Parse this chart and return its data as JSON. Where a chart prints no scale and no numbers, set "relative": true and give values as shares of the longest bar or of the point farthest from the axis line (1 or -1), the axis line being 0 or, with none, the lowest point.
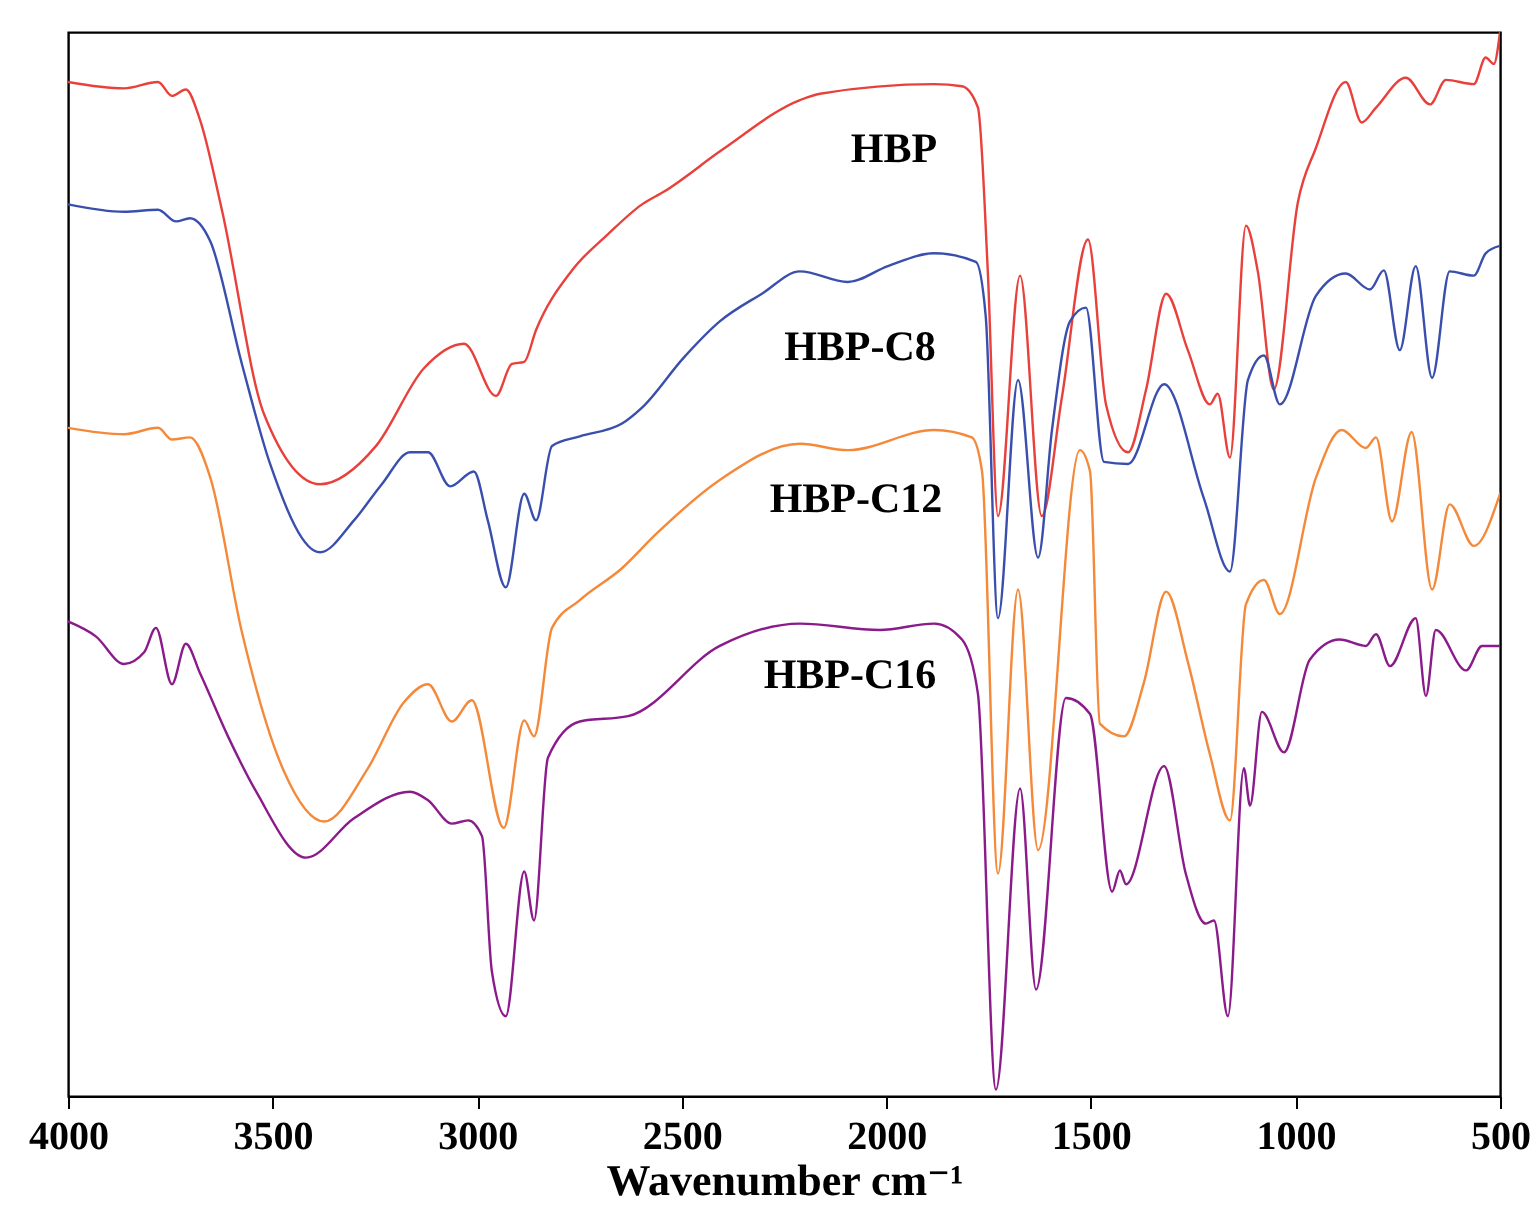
{
  "chart_data": {
    "type": "line",
    "xlabel": "Wavenumber cm⁻¹",
    "relative": true,
    "xlim": [
      4000,
      500
    ],
    "xticks": [
      4000,
      3500,
      3000,
      2500,
      2000,
      1500,
      1000,
      500
    ],
    "marker": "none",
    "line_style": "solid",
    "series": [
      {
        "name": "HBP",
        "color": "#e8413c",
        "x": [
          4000,
          3863,
          3780,
          3746,
          3712,
          3677,
          3624,
          3521,
          3384,
          3247,
          3130,
          3032,
          2954,
          2915,
          2885,
          2856,
          2768,
          2680,
          2597,
          2543,
          2402,
          2211,
          2162,
          1883,
          1815,
          1776,
          1752,
          1727,
          1673,
          1620,
          1571,
          1507,
          1463,
          1409,
          1365,
          1316,
          1263,
          1209,
          1190,
          1160,
          1121,
          1092,
          1053,
          994,
          950,
          877,
          838,
          803,
          730,
          671,
          632,
          564,
          535,
          515,
          500
        ],
        "values": [
          0.953,
          0.947,
          0.953,
          0.94,
          0.946,
          0.917,
          0.833,
          0.641,
          0.575,
          0.611,
          0.684,
          0.707,
          0.658,
          0.688,
          0.69,
          0.72,
          0.776,
          0.81,
          0.838,
          0.85,
          0.889,
          0.936,
          0.942,
          0.951,
          0.949,
          0.929,
          0.776,
          0.545,
          0.771,
          0.545,
          0.656,
          0.805,
          0.65,
          0.605,
          0.664,
          0.754,
          0.701,
          0.65,
          0.66,
          0.6,
          0.818,
          0.775,
          0.664,
          0.84,
          0.891,
          0.953,
          0.915,
          0.929,
          0.957,
          0.932,
          0.955,
          0.951,
          0.976,
          0.97,
          1
        ]
      },
      {
        "name": "HBP-C8",
        "color": "#3a4fad",
        "x": [
          4000,
          3863,
          3780,
          3736,
          3702,
          3652,
          3575,
          3506,
          3384,
          3301,
          3233,
          3164,
          3120,
          3066,
          3008,
          2974,
          2930,
          2885,
          2856,
          2817,
          2749,
          2646,
          2597,
          2495,
          2407,
          2304,
          2211,
          2094,
          1996,
          1883,
          1781,
          1757,
          1727,
          1678,
          1629,
          1595,
          1551,
          1512,
          1468,
          1409,
          1321,
          1224,
          1160,
          1116,
          1077,
          1038,
          950,
          877,
          818,
          784,
          745,
          706,
          666,
          623,
          564,
          535,
          500
        ],
        "values": [
          0.838,
          0.831,
          0.833,
          0.822,
          0.825,
          0.803,
          0.688,
          0.594,
          0.511,
          0.541,
          0.575,
          0.605,
          0.605,
          0.573,
          0.587,
          0.541,
          0.478,
          0.566,
          0.541,
          0.611,
          0.62,
          0.632,
          0.647,
          0.694,
          0.728,
          0.754,
          0.775,
          0.765,
          0.78,
          0.792,
          0.784,
          0.733,
          0.449,
          0.673,
          0.506,
          0.626,
          0.728,
          0.741,
          0.596,
          0.594,
          0.669,
          0.562,
          0.493,
          0.673,
          0.696,
          0.65,
          0.752,
          0.773,
          0.758,
          0.776,
          0.701,
          0.78,
          0.675,
          0.775,
          0.771,
          0.792,
          0.799
        ]
      },
      {
        "name": "HBP-C12",
        "color": "#f5893a",
        "x": [
          4000,
          3863,
          3780,
          3746,
          3702,
          3652,
          3575,
          3472,
          3374,
          3267,
          3179,
          3120,
          3062,
          3013,
          2935,
          2885,
          2861,
          2817,
          2749,
          2646,
          2563,
          2407,
          2211,
          2094,
          1883,
          1791,
          1766,
          1727,
          1678,
          1629,
          1527,
          1502,
          1478,
          1419,
          1370,
          1316,
          1263,
          1209,
          1160,
          1121,
          1077,
          1038,
          950,
          887,
          828,
          803,
          764,
          716,
          666,
          623,
          564,
          500
        ],
        "values": [
          0.628,
          0.622,
          0.628,
          0.617,
          0.619,
          0.581,
          0.436,
          0.305,
          0.258,
          0.308,
          0.37,
          0.387,
          0.352,
          0.372,
          0.252,
          0.353,
          0.338,
          0.44,
          0.466,
          0.496,
          0.528,
          0.579,
          0.613,
          0.607,
          0.626,
          0.619,
          0.587,
          0.209,
          0.476,
          0.231,
          0.607,
          0.587,
          0.35,
          0.338,
          0.389,
          0.474,
          0.408,
          0.321,
          0.259,
          0.462,
          0.485,
          0.453,
          0.581,
          0.626,
          0.609,
          0.619,
          0.54,
          0.624,
          0.476,
          0.556,
          0.517,
          0.566
        ]
      },
      {
        "name": "HBP-C16",
        "color": "#8b1a8b",
        "x": [
          4000,
          3932,
          3863,
          3814,
          3785,
          3746,
          3712,
          3677,
          3609,
          3540,
          3418,
          3301,
          3164,
          3120,
          3062,
          3022,
          2988,
          2964,
          2930,
          2885,
          2861,
          2827,
          2749,
          2631,
          2407,
          2211,
          2016,
          1883,
          1815,
          1776,
          1732,
          1673,
          1634,
          1561,
          1502,
          1448,
          1429,
          1414,
          1321,
          1268,
          1219,
          1199,
          1165,
          1126,
          1111,
          1082,
          1028,
          965,
          892,
          828,
          803,
          769,
          706,
          681,
          657,
          583,
          544,
          500
        ],
        "values": [
          0.446,
          0.432,
          0.406,
          0.417,
          0.44,
          0.387,
          0.425,
          0.397,
          0.338,
          0.286,
          0.224,
          0.261,
          0.286,
          0.278,
          0.256,
          0.259,
          0.244,
          0.117,
          0.075,
          0.211,
          0.165,
          0.318,
          0.352,
          0.357,
          0.423,
          0.444,
          0.438,
          0.444,
          0.429,
          0.378,
          0.006,
          0.289,
          0.1,
          0.374,
          0.359,
          0.192,
          0.212,
          0.199,
          0.31,
          0.209,
          0.162,
          0.165,
          0.075,
          0.308,
          0.273,
          0.361,
          0.323,
          0.41,
          0.429,
          0.423,
          0.434,
          0.404,
          0.449,
          0.376,
          0.438,
          0.4,
          0.423,
          0.423
        ]
      }
    ]
  }
}
